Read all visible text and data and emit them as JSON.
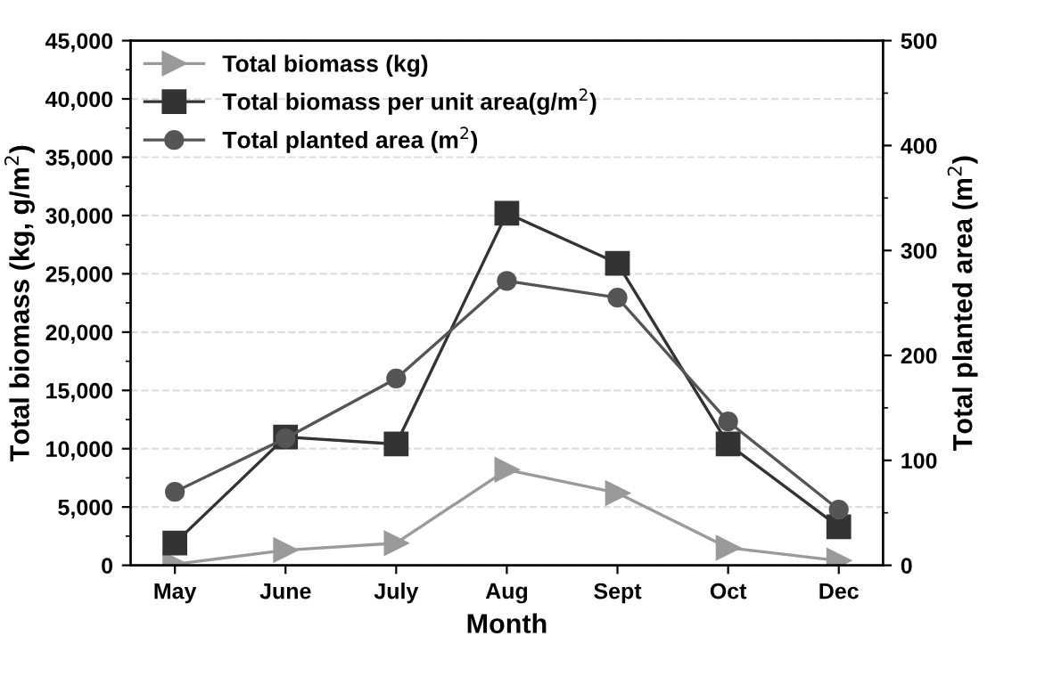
{
  "chart_data": {
    "type": "line",
    "xlabel": "Month",
    "ylabel": "Total biomass (kg, g/m$^{2}$)",
    "y2label": "Total planted area (m$^{2}$)",
    "categories": [
      "May",
      "June",
      "July",
      "Aug",
      "Sept",
      "Oct",
      "Dec"
    ],
    "series": [
      {
        "name": "Total biomass (kg)",
        "color": "#9a9a9a",
        "marker": "triangle",
        "values": [
          100,
          1300,
          1900,
          8200,
          6200,
          1500,
          400
        ]
      },
      {
        "name": "Total biomass per unit area(g/m$^{2}$)",
        "color": "#333333",
        "marker": "square",
        "values": [
          1900,
          11000,
          10400,
          30200,
          25900,
          10400,
          3300
        ]
      },
      {
        "name": "Total planted area (m$^{2}$)",
        "color": "#555555",
        "marker": "circle",
        "axis": "y2",
        "values": [
          70,
          121,
          178,
          271,
          255,
          137,
          53
        ]
      }
    ],
    "ylim": [
      0,
      45000
    ],
    "yticks": [
      {
        "value": 0,
        "label": "0"
      },
      {
        "value": 5000,
        "label": "5,000"
      },
      {
        "value": 10000,
        "label": "10,000"
      },
      {
        "value": 15000,
        "label": "15,000"
      },
      {
        "value": 20000,
        "label": "20,000"
      },
      {
        "value": 25000,
        "label": "25,000"
      },
      {
        "value": 30000,
        "label": "30,000"
      },
      {
        "value": 35000,
        "label": "35,000"
      },
      {
        "value": 40000,
        "label": "40,000"
      },
      {
        "value": 45000,
        "label": "45,000"
      }
    ],
    "y2lim": [
      0,
      500
    ],
    "y2ticks": [
      0,
      100,
      200,
      300,
      400,
      500
    ],
    "grid": "y",
    "legend": "top left"
  }
}
